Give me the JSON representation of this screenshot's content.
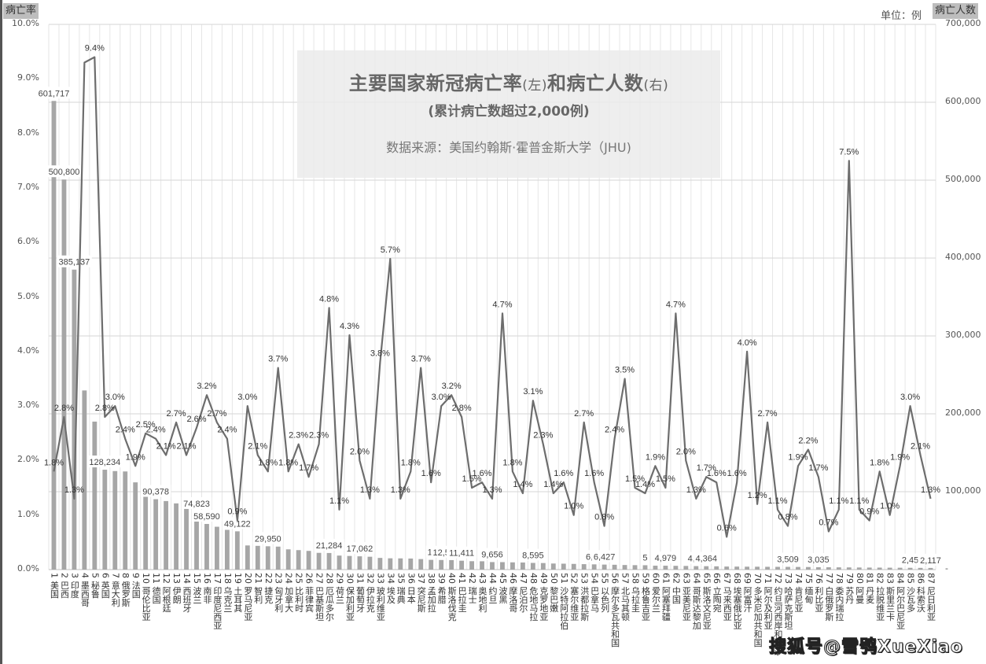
{
  "chart": {
    "title": "主要国家新冠病亡率",
    "title_left_note": "(左)",
    "title_mid": "和病亡人数",
    "title_right_note": "(右)",
    "subtitle": "(累计病亡数超过2,000例)",
    "source": "数据来源：美国约翰斯·霍普金斯大学（JHU)",
    "left_axis_title": "病亡率",
    "right_axis_title": "病亡人数",
    "unit_label": "单位：例",
    "watermark": "搜狐号@雪鸮XueXiao",
    "left_ticks": [
      "10.0%",
      "9.0%",
      "8.0%",
      "7.0%",
      "6.0%",
      "5.0%",
      "4.0%",
      "3.0%",
      "2.0%",
      "1.0%",
      "0.0%"
    ],
    "right_ticks": [
      "700,000",
      "600,000",
      "500,000",
      "400,000",
      "300,000",
      "200,000",
      "100,000",
      "-"
    ],
    "colors": {
      "bar": "#a6a6a6",
      "line": "#6d6d6d",
      "grid": "#d9d9d9",
      "title_box": "#ececec"
    }
  },
  "chart_data": {
    "type": "bar+line",
    "title": "主要国家新冠病亡率(左)和病亡人数(右)",
    "subtitle": "(累计病亡数超过2,000例)",
    "source": "数据来源：美国约翰斯·霍普金斯大学（JHU)",
    "xlabel": "",
    "ylabel_left": "病亡率",
    "ylabel_right": "病亡人数",
    "ylim_left": [
      0,
      10
    ],
    "ylim_right": [
      0,
      700000
    ],
    "grid": true,
    "categories": [
      "1 美国",
      "2 巴西",
      "3 印度",
      "4 墨西哥",
      "5 秘鲁",
      "6 英国",
      "7 意大利",
      "8 俄罗斯",
      "9 法国",
      "10 哥伦比亚",
      "11 德国",
      "12 阿根廷",
      "13 伊朗",
      "14 西班牙",
      "15 波兰",
      "16 南非",
      "17 印度尼西亚",
      "18 乌克兰",
      "19 土耳其",
      "20 罗马尼亚",
      "21 智利",
      "22 捷克",
      "23 匈牙利",
      "24 加拿大",
      "25 比利时",
      "26 菲律宾",
      "27 巴基斯坦",
      "28 厄瓜多尔",
      "29 荷兰",
      "30 保加利亚",
      "31 葡萄牙",
      "32 伊拉克",
      "33 玻利维亚",
      "34 埃及",
      "35 瑞典",
      "36 日本",
      "37 突尼斯",
      "38 孟加拉",
      "39 希腊",
      "40 斯洛伐克",
      "41 巴拉圭",
      "42 瑞士",
      "43 奥地利",
      "44 约旦",
      "45 波黑",
      "46 摩洛哥",
      "47 尼泊尔",
      "48 危地马拉",
      "49 克罗地亚",
      "50 黎巴嫩",
      "51 沙特阿拉伯",
      "52 塞尔维亚",
      "53 洪都拉斯",
      "54 巴拿马",
      "55 以色列",
      "56 摩尔多瓦共和国",
      "57 北马其顿",
      "58 乌拉圭",
      "59 格鲁吉亚",
      "60 爱尔兰",
      "61 阿塞拜疆",
      "62 中国",
      "63 亚美尼亚",
      "64 哥斯达黎加",
      "65 斯洛文尼亚",
      "66 立陶宛",
      "67 马来西亚",
      "68 埃塞俄比亚",
      "69 阿富汗",
      "70 多米尼加共和国",
      "71 阿尔及利亚",
      "72 约旦河西岸和加沙",
      "73 哈萨克斯坦",
      "74 肯尼亚",
      "75 缅甸",
      "76 利比亚",
      "77 白俄罗斯",
      "78 委内瑞拉",
      "79 苏丹",
      "80 阿曼",
      "81 丹麦",
      "82 拉脱维亚",
      "83 斯里兰卡",
      "84 阿尔巴尼亚",
      "85 沙瓦多",
      "86 科索沃",
      "87 尼日利亚"
    ],
    "series": [
      {
        "name": "病亡人数",
        "axis": "right",
        "type": "bar",
        "values": [
          601717,
          500800,
          385137,
          230000,
          190000,
          128234,
          126500,
          126000,
          112000,
          97000,
          90378,
          88000,
          85000,
          80000,
          74823,
          58590,
          55000,
          51000,
          49122,
          31000,
          30500,
          29950,
          29500,
          26000,
          25000,
          24000,
          21500,
          21284,
          18000,
          17500,
          17062,
          16500,
          15000,
          14500,
          14400,
          14200,
          13500,
          12500,
          12300,
          12200,
          11411,
          10800,
          10700,
          9656,
          9600,
          9300,
          9100,
          8595,
          8400,
          7800,
          7600,
          7300,
          7000,
          6740,
          6427,
          6200,
          5900,
          5700,
          5600,
          5000,
          4979,
          4850,
          4700,
          4470,
          4364,
          4200,
          3900,
          3850,
          3750,
          3700,
          3600,
          3550,
          3509,
          3400,
          3300,
          3035,
          3000,
          2900,
          2800,
          2700,
          2600,
          2550,
          2450,
          2400,
          2300,
          2200,
          2117
        ],
        "data_labels": {
          "0": "601,717",
          "1": "500,800",
          "2": "385,137",
          "5": "128,234",
          "10": "90,378",
          "14": "74,823",
          "15": "58,590",
          "18": "49,122",
          "21": "29,950",
          "27": "21,284",
          "30": "17,062",
          "37": "1:",
          "38": "12,5",
          "40": "11,411",
          "43": "9,656",
          "47": "8,595",
          "53": "6,74",
          "54": "6,427",
          "58": "5",
          "60": "4,979",
          "63": "4,47",
          "64": "4,364",
          "72": "3,509",
          "74": "3",
          "75": "3,035",
          "84": "2,45",
          "85": "2",
          "86": "2,117"
        }
      },
      {
        "name": "病亡率",
        "axis": "left",
        "type": "line",
        "unit": "%",
        "values": [
          1.8,
          2.8,
          1.3,
          9.3,
          9.4,
          2.8,
          3.0,
          2.4,
          1.9,
          2.5,
          2.4,
          2.1,
          2.7,
          2.1,
          2.6,
          3.2,
          2.7,
          2.4,
          0.9,
          3.0,
          2.1,
          1.8,
          3.7,
          1.8,
          2.3,
          1.7,
          2.3,
          4.8,
          1.1,
          4.3,
          2.0,
          1.3,
          3.8,
          5.7,
          1.3,
          1.8,
          3.7,
          1.6,
          3.0,
          3.2,
          2.8,
          1.5,
          1.6,
          1.3,
          4.7,
          1.8,
          1.4,
          3.1,
          2.3,
          1.4,
          1.6,
          1.0,
          2.7,
          1.6,
          0.8,
          2.4,
          3.5,
          1.5,
          1.4,
          1.9,
          1.5,
          4.7,
          2.0,
          1.3,
          1.7,
          1.6,
          0.6,
          1.6,
          4.0,
          1.2,
          2.7,
          1.1,
          0.8,
          1.9,
          2.2,
          1.7,
          0.7,
          1.1,
          7.5,
          1.1,
          0.9,
          1.8,
          1.0,
          1.9,
          3.0,
          2.1,
          1.3
        ],
        "data_labels": [
          "1.8%",
          "2.8%",
          "1.3%",
          "",
          "9.4%",
          "2.8%",
          "3.0%",
          "2.4%",
          "1.9%",
          "2.5%",
          "2.4%",
          "2.1%",
          "2.7%",
          "2.1%",
          "2.6%",
          "3.2%",
          "2.7%",
          "2.4%",
          "0.9%",
          "3.0%",
          "2.1%",
          "1.8%",
          "3.7%",
          "1.8%",
          "2.3%",
          "1.7%",
          "2.3%",
          "4.8%",
          "1.1%",
          "4.3%",
          "2.0%",
          "1.3%",
          "3.8%",
          "5.7%",
          "1.3%",
          "1.8%",
          "3.7%",
          "1.6%",
          "3.0%",
          "3.2%",
          "2.8%",
          "1.5%",
          "1.6%",
          "1.3%",
          "4.7%",
          "1.8%",
          "1.4%",
          "3.1%",
          "2.3%",
          "1.4%",
          "1.6%",
          "1.0%",
          "2.7%",
          "1.6%",
          "0.8%",
          "2.4%",
          "3.5%",
          "1.5%",
          "1.4%",
          "1.9%",
          "1.5%",
          "4.7%",
          "2.0%",
          "1.3%",
          "1.7%",
          "1.6%",
          "0.6%",
          "1.6%",
          "4.0%",
          "1.2%",
          "2.7%",
          "1.1%",
          "0.8%",
          "1.9%",
          "2.2%",
          "1.7%",
          "0.7%",
          "1.1%",
          "7.5%",
          "1.1%",
          "0.9%",
          "1.8%",
          "1.0%",
          "1.9%",
          "3.0%",
          "2.1%",
          "1.3%"
        ]
      }
    ],
    "legend": null
  }
}
